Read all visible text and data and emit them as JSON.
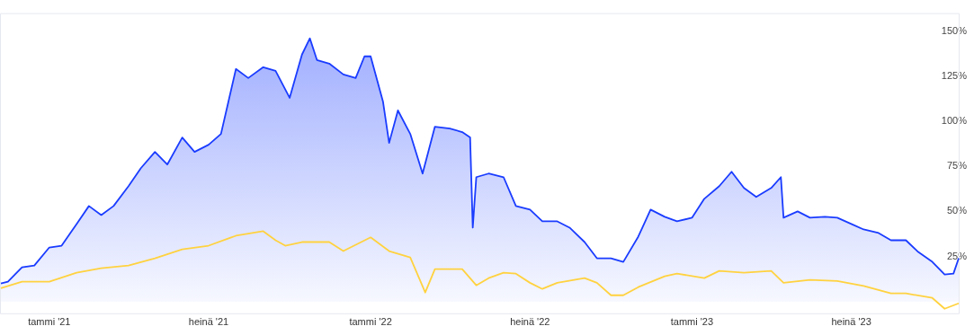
{
  "chart_data": {
    "type": "area",
    "xlim": [
      "2020-11-06",
      "2023-11-01"
    ],
    "ylim": [
      -7,
      160
    ],
    "xticks": [
      {
        "value": "2021-01-01",
        "label": "tammi '21"
      },
      {
        "value": "2021-07-01",
        "label": "heinä '21"
      },
      {
        "value": "2022-01-01",
        "label": "tammi '22"
      },
      {
        "value": "2022-07-01",
        "label": "heinä '22"
      },
      {
        "value": "2023-01-01",
        "label": "tammi '23"
      },
      {
        "value": "2023-07-01",
        "label": "heinä '23"
      }
    ],
    "yticks": [
      {
        "value": 25,
        "label": "25%"
      },
      {
        "value": 50,
        "label": "50%"
      },
      {
        "value": 75,
        "label": "75%"
      },
      {
        "value": 100,
        "label": "100%"
      },
      {
        "value": 125,
        "label": "125%"
      },
      {
        "value": 150,
        "label": "150%"
      }
    ],
    "grid": false,
    "legend": false,
    "marker": "none",
    "line_style": "solid",
    "series": [
      {
        "color": "#1a3cff",
        "x": [
          "2020-11-07",
          "2020-11-15",
          "2020-12-01",
          "2020-12-15",
          "2021-01-01",
          "2021-01-15",
          "2021-02-01",
          "2021-02-15",
          "2021-03-01",
          "2021-03-15",
          "2021-04-01",
          "2021-04-15",
          "2021-05-01",
          "2021-05-15",
          "2021-06-01",
          "2021-06-15",
          "2021-07-01",
          "2021-07-15",
          "2021-08-01",
          "2021-08-15",
          "2021-09-01",
          "2021-09-15",
          "2021-10-01",
          "2021-10-15",
          "2021-10-24",
          "2021-11-01",
          "2021-11-15",
          "2021-12-01",
          "2021-12-15",
          "2021-12-25",
          "2022-01-01",
          "2022-01-15",
          "2022-01-22",
          "2022-02-01",
          "2022-02-15",
          "2022-03-01",
          "2022-03-15",
          "2022-04-01",
          "2022-04-15",
          "2022-04-24",
          "2022-04-27",
          "2022-05-01",
          "2022-05-15",
          "2022-06-01",
          "2022-06-15",
          "2022-07-01",
          "2022-07-15",
          "2022-08-01",
          "2022-08-15",
          "2022-09-01",
          "2022-09-15",
          "2022-10-01",
          "2022-10-15",
          "2022-11-01",
          "2022-11-15",
          "2022-12-01",
          "2022-12-15",
          "2023-01-01",
          "2023-01-15",
          "2023-02-01",
          "2023-02-15",
          "2023-03-01",
          "2023-03-15",
          "2023-04-01",
          "2023-04-12",
          "2023-04-15",
          "2023-05-01",
          "2023-05-15",
          "2023-06-01",
          "2023-06-15",
          "2023-07-01",
          "2023-07-15",
          "2023-08-01",
          "2023-08-15",
          "2023-09-01",
          "2023-09-15",
          "2023-10-01",
          "2023-10-15",
          "2023-10-25",
          "2023-10-31"
        ],
        "values": [
          10,
          11,
          19,
          20,
          30,
          31,
          43,
          53,
          48,
          53,
          64,
          74,
          83,
          76,
          91,
          83,
          87,
          93,
          129,
          124,
          130,
          128,
          113,
          137,
          146,
          134,
          132,
          126,
          124,
          136,
          136,
          111,
          88,
          106,
          93,
          71,
          97,
          96,
          94,
          91,
          41,
          69,
          71,
          69,
          53,
          51,
          44.5,
          44.5,
          41,
          33,
          24,
          24,
          22,
          36,
          51,
          47,
          44.5,
          46.5,
          57,
          64,
          72,
          63,
          58,
          63,
          69,
          46.5,
          50,
          46.5,
          47,
          46.5,
          43,
          40,
          38,
          34,
          34,
          27.5,
          22,
          15,
          15.5,
          24
        ]
      },
      {
        "type": "line",
        "color": "#ffd23f",
        "x": [
          "2020-11-07",
          "2020-12-01",
          "2021-01-01",
          "2021-02-01",
          "2021-03-01",
          "2021-04-01",
          "2021-05-01",
          "2021-06-01",
          "2021-07-01",
          "2021-08-01",
          "2021-09-01",
          "2021-09-15",
          "2021-09-26",
          "2021-10-15",
          "2021-11-15",
          "2021-12-01",
          "2022-01-01",
          "2022-01-22",
          "2022-02-15",
          "2022-03-04",
          "2022-03-15",
          "2022-04-15",
          "2022-05-01",
          "2022-05-15",
          "2022-06-01",
          "2022-06-15",
          "2022-07-01",
          "2022-07-15",
          "2022-08-01",
          "2022-09-01",
          "2022-09-15",
          "2022-10-01",
          "2022-10-15",
          "2022-11-01",
          "2022-12-01",
          "2022-12-15",
          "2023-01-15",
          "2023-02-01",
          "2023-03-01",
          "2023-04-01",
          "2023-04-15",
          "2023-05-15",
          "2023-06-15",
          "2023-07-15",
          "2023-08-15",
          "2023-09-01",
          "2023-10-01",
          "2023-10-15",
          "2023-10-31"
        ],
        "values": [
          7.4,
          11,
          11,
          16,
          18.5,
          20,
          24,
          29,
          31,
          36.5,
          39,
          34,
          31,
          33,
          33,
          28,
          35.6,
          28,
          24.5,
          5,
          18,
          18,
          9,
          13,
          16,
          15.5,
          10.4,
          7,
          10.4,
          13,
          10.4,
          3.5,
          3.5,
          8,
          14,
          15.5,
          13,
          17,
          16,
          17,
          10.4,
          12,
          11.4,
          8.6,
          4.5,
          4.5,
          2,
          -4,
          -1
        ]
      }
    ]
  }
}
